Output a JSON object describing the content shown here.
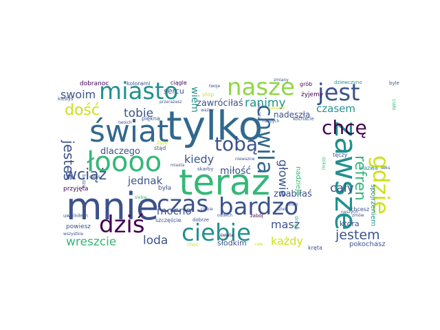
{
  "palette": {
    "dark_purple": "#440154",
    "indigo": "#3b528b",
    "blue": "#31688e",
    "teal": "#21918c",
    "green": "#35b779",
    "lime": "#90d743",
    "yellow": "#cde11d"
  },
  "words": [
    {
      "text": "tylko"
    },
    {
      "text": "mnie"
    },
    {
      "text": "teraz"
    },
    {
      "text": "świat"
    },
    {
      "text": "zawsze"
    },
    {
      "text": "miasto"
    },
    {
      "text": "nasze"
    },
    {
      "text": "bardzo"
    },
    {
      "text": "czas"
    },
    {
      "text": "ciebie"
    },
    {
      "text": "łoooo"
    },
    {
      "text": "chwila"
    },
    {
      "text": "gdzie"
    },
    {
      "text": "jest"
    },
    {
      "text": "dziś"
    },
    {
      "text": "tobą"
    },
    {
      "text": "chcę"
    },
    {
      "text": "refren"
    },
    {
      "text": "dość"
    },
    {
      "text": "swoim"
    },
    {
      "text": "wciąż"
    },
    {
      "text": "tobie"
    },
    {
      "text": "jesteś"
    },
    {
      "text": "jednak"
    },
    {
      "text": "kiedy"
    },
    {
      "text": "głowie"
    },
    {
      "text": "ranimy"
    },
    {
      "text": "czasem"
    },
    {
      "text": "cały"
    },
    {
      "text": "jestem"
    },
    {
      "text": "masz"
    },
    {
      "text": "każdy"
    },
    {
      "text": "loda"
    },
    {
      "text": "wreszcie"
    },
    {
      "text": "mocno"
    },
    {
      "text": "miłość"
    },
    {
      "text": "dlaczego"
    },
    {
      "text": "zwabiłaś"
    },
    {
      "text": "zawróciłaś"
    },
    {
      "text": "wiem"
    },
    {
      "text": "nadeszła"
    },
    {
      "text": "sercu"
    },
    {
      "text": "słodkim"
    },
    {
      "text": "spojrzeniem"
    },
    {
      "text": "która"
    },
    {
      "text": "pokochasz"
    },
    {
      "text": "dobranoc"
    },
    {
      "text": "kolorami"
    },
    {
      "text": "ciągle"
    },
    {
      "text": "grób"
    },
    {
      "text": "dziewczyno"
    },
    {
      "text": "byle"
    },
    {
      "text": "kiedyś"
    },
    {
      "text": "przerażasz"
    },
    {
      "text": "stop"
    },
    {
      "text": "żyjemy"
    },
    {
      "text": "ciało"
    },
    {
      "text": "twoich"
    },
    {
      "text": "piękna"
    },
    {
      "text": "ważny"
    },
    {
      "text": "nalujesz"
    },
    {
      "text": "kochacie"
    },
    {
      "text": "będzie"
    },
    {
      "text": "stąd"
    },
    {
      "text": "żyje"
    },
    {
      "text": "odważaj"
    },
    {
      "text": "naszych"
    },
    {
      "text": "nadzieję"
    },
    {
      "text": "tęczy"
    },
    {
      "text": "dzikiej"
    },
    {
      "text": "nazwa"
    },
    {
      "text": "seks"
    },
    {
      "text": "całus"
    },
    {
      "text": "miasta"
    },
    {
      "text": "skarby"
    },
    {
      "text": "przyjęta"
    },
    {
      "text": "siebie"
    },
    {
      "text": "była"
    },
    {
      "text": "działo"
    },
    {
      "text": "uwolniłem"
    },
    {
      "text": "powiesz"
    },
    {
      "text": "wszystkie"
    },
    {
      "text": "szczęście"
    },
    {
      "text": "dobrze"
    },
    {
      "text": "oddech"
    },
    {
      "text": "zabój"
    },
    {
      "text": "droga"
    },
    {
      "text": "chcesz"
    },
    {
      "text": "zmów"
    },
    {
      "text": "naszych"
    },
    {
      "text": "choć"
    },
    {
      "text": "świata"
    },
    {
      "text": "całe"
    },
    {
      "text": "kręta"
    },
    {
      "text": "niewazne"
    },
    {
      "text": "twoje"
    },
    {
      "text": "ciebie"
    },
    {
      "text": "dzień"
    },
    {
      "text": "zmiany"
    }
  ]
}
